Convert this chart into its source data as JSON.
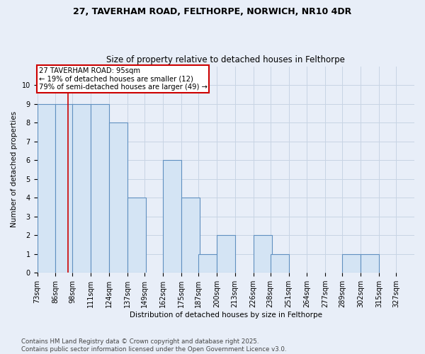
{
  "title_line1": "27, TAVERHAM ROAD, FELTHORPE, NORWICH, NR10 4DR",
  "title_line2": "Size of property relative to detached houses in Felthorpe",
  "xlabel": "Distribution of detached houses by size in Felthorpe",
  "ylabel": "Number of detached properties",
  "footer": "Contains HM Land Registry data © Crown copyright and database right 2025.\nContains public sector information licensed under the Open Government Licence v3.0.",
  "bin_labels": [
    "73sqm",
    "86sqm",
    "98sqm",
    "111sqm",
    "124sqm",
    "137sqm",
    "149sqm",
    "162sqm",
    "175sqm",
    "187sqm",
    "200sqm",
    "213sqm",
    "226sqm",
    "238sqm",
    "251sqm",
    "264sqm",
    "277sqm",
    "289sqm",
    "302sqm",
    "315sqm",
    "327sqm"
  ],
  "bin_edges": [
    73,
    86,
    98,
    111,
    124,
    137,
    149,
    162,
    175,
    187,
    200,
    213,
    226,
    238,
    251,
    264,
    277,
    289,
    302,
    315,
    327
  ],
  "bar_heights": [
    9,
    9,
    9,
    9,
    8,
    4,
    0,
    6,
    4,
    1,
    2,
    0,
    2,
    1,
    0,
    0,
    0,
    1,
    1,
    0
  ],
  "bar_color": "#d4e4f4",
  "bar_edge_color": "#6090c0",
  "red_line_x": 95,
  "annotation_text": "27 TAVERHAM ROAD: 95sqm\n← 19% of detached houses are smaller (12)\n79% of semi-detached houses are larger (49) →",
  "annotation_box_color": "#ffffff",
  "annotation_box_edge": "#cc0000",
  "ylim": [
    0,
    11
  ],
  "yticks": [
    0,
    1,
    2,
    3,
    4,
    5,
    6,
    7,
    8,
    9,
    10
  ],
  "background_color": "#e8eef8",
  "plot_bg_color": "#e8eef8",
  "grid_color": "#c8d4e4",
  "title_fontsize": 9,
  "subtitle_fontsize": 8.5,
  "axis_fontsize": 7.5,
  "tick_fontsize": 7
}
